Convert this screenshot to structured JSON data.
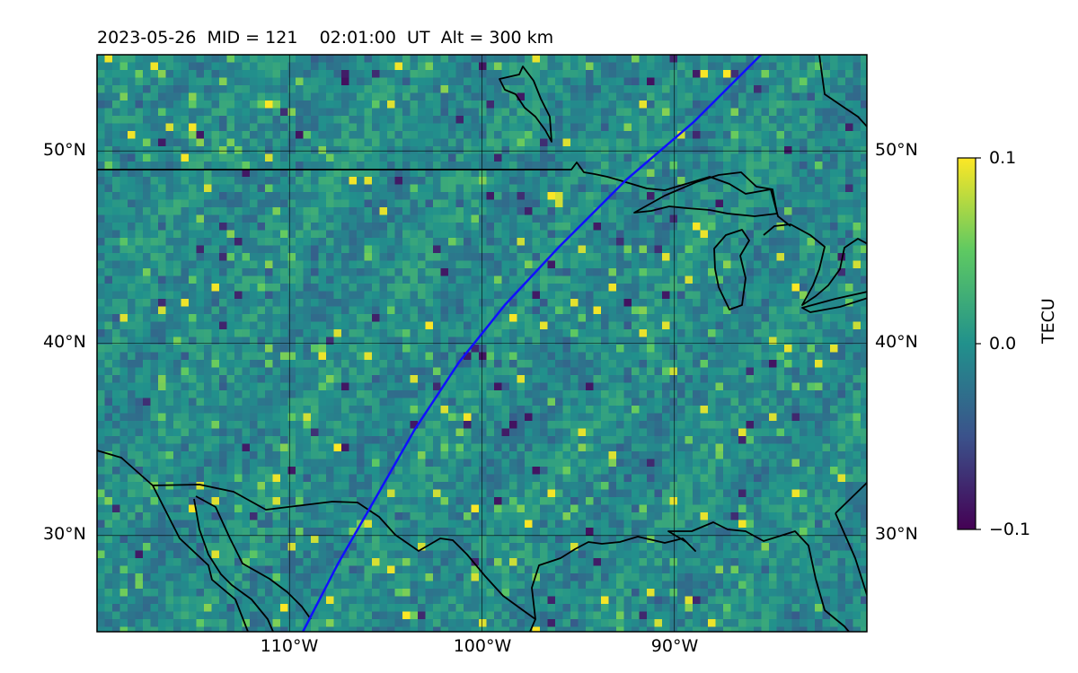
{
  "title": {
    "date": "2023-05-26",
    "mid_label": "MID = 121",
    "time": "02:01:00",
    "time_unit": "UT",
    "alt_label": "Alt = 300 km"
  },
  "map": {
    "lon_range": [
      -120,
      -80
    ],
    "lat_range": [
      25,
      55
    ],
    "lon_ticks": [
      {
        "value": -110,
        "label": "110°W"
      },
      {
        "value": -100,
        "label": "100°W"
      },
      {
        "value": -90,
        "label": "90°W"
      }
    ],
    "lat_ticks": [
      {
        "value": 30,
        "label": "30°N"
      },
      {
        "value": 40,
        "label": "40°N"
      },
      {
        "value": 50,
        "label": "50°N"
      }
    ],
    "grid": true,
    "field_colormap": "viridis",
    "track_color": "#1010ff",
    "coastline_color": "#000000"
  },
  "colorbar": {
    "label": "TECU",
    "min": -0.1,
    "max": 0.1,
    "ticks": [
      {
        "value": 0.1,
        "label": "0.1"
      },
      {
        "value": 0.0,
        "label": "0.0"
      },
      {
        "value": -0.1,
        "label": "−0.1"
      }
    ],
    "colors": [
      "#440154",
      "#3b528b",
      "#21918c",
      "#5ec962",
      "#fde725"
    ]
  },
  "track": [
    {
      "lon": -109.3,
      "lat": 25.0
    },
    {
      "lon": -107.5,
      "lat": 28.5
    },
    {
      "lon": -105.5,
      "lat": 32.0
    },
    {
      "lon": -103.5,
      "lat": 35.5
    },
    {
      "lon": -101.2,
      "lat": 39.0
    },
    {
      "lon": -98.8,
      "lat": 42.0
    },
    {
      "lon": -96.0,
      "lat": 45.0
    },
    {
      "lon": -92.5,
      "lat": 48.5
    },
    {
      "lon": -89.0,
      "lat": 51.5
    },
    {
      "lon": -85.5,
      "lat": 55.0
    }
  ]
}
